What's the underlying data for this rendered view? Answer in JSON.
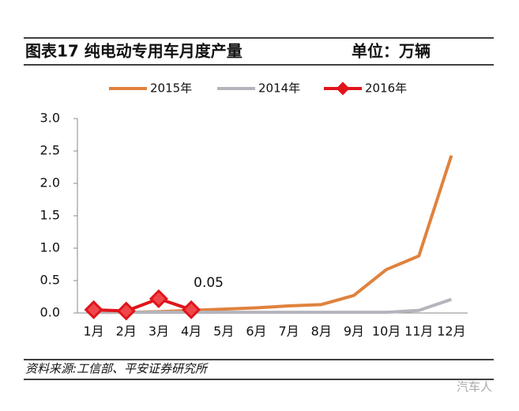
{
  "chart_data": {
    "type": "line",
    "title": "图表17 纯电动专用车月度产量",
    "unit": "单位：万辆",
    "categories": [
      "1月",
      "2月",
      "3月",
      "4月",
      "5月",
      "6月",
      "7月",
      "8月",
      "9月",
      "10月",
      "11月",
      "12月"
    ],
    "series": [
      {
        "name": "2015年",
        "color": "#e0823d",
        "values": [
          0.01,
          0.01,
          0.02,
          0.04,
          0.06,
          0.08,
          0.11,
          0.13,
          0.27,
          0.67,
          0.88,
          2.43
        ]
      },
      {
        "name": "2014年",
        "color": "#b4b4bc",
        "values": [
          0.01,
          0.01,
          0.01,
          0.01,
          0.01,
          0.01,
          0.01,
          0.01,
          0.01,
          0.01,
          0.04,
          0.21
        ]
      },
      {
        "name": "2016年",
        "color": "#e0151b",
        "marker": "diamond",
        "values": [
          0.05,
          0.03,
          0.22,
          0.05,
          null,
          null,
          null,
          null,
          null,
          null,
          null,
          null
        ],
        "value_labels": [
          null,
          null,
          null,
          "0.05",
          null,
          null,
          null,
          null,
          null,
          null,
          null,
          null
        ]
      }
    ],
    "ylim": [
      0,
      3
    ],
    "yticks": [
      {
        "value": 0,
        "label": "0.0"
      },
      0.5,
      {
        "value": 1,
        "label": "1.0"
      },
      1.5,
      {
        "value": 2,
        "label": "2.0"
      },
      2.5,
      {
        "value": 3,
        "label": "3.0"
      }
    ],
    "source": "资料来源:工信部、平安证券研究所",
    "watermark": "汽车人"
  }
}
